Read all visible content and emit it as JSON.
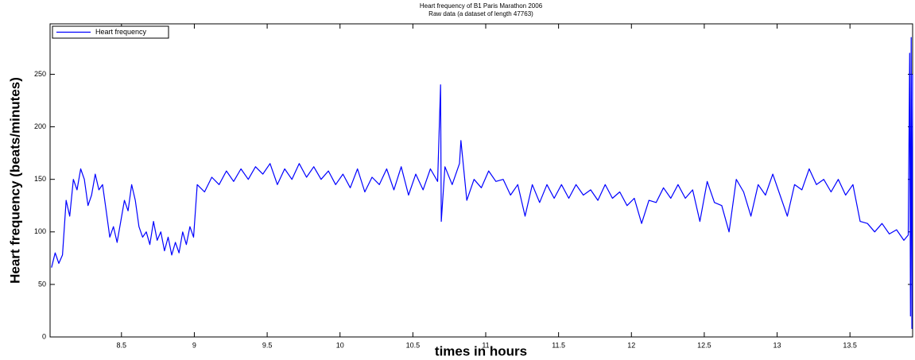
{
  "chart_data": {
    "type": "line",
    "title": "Heart frequency of B1 Paris Marathon 2006",
    "subtitle": "Raw data (a dataset of length 47763)",
    "xlabel": "times in hours",
    "ylabel": "Heart frequency (beats/minutes)",
    "xlim": [
      8.01,
      13.93
    ],
    "ylim": [
      0,
      298
    ],
    "xticks": [
      8.5,
      9,
      9.5,
      10,
      10.5,
      11,
      11.5,
      12,
      12.5,
      13,
      13.5
    ],
    "yticks": [
      0,
      50,
      100,
      150,
      200,
      250
    ],
    "grid": false,
    "legend": "upper left",
    "x": [
      8.02,
      8.045,
      8.07,
      8.095,
      8.12,
      8.145,
      8.17,
      8.195,
      8.22,
      8.245,
      8.27,
      8.295,
      8.32,
      8.345,
      8.37,
      8.395,
      8.42,
      8.445,
      8.47,
      8.495,
      8.52,
      8.545,
      8.57,
      8.595,
      8.62,
      8.645,
      8.67,
      8.695,
      8.72,
      8.745,
      8.77,
      8.795,
      8.82,
      8.845,
      8.87,
      8.895,
      8.92,
      8.945,
      8.97,
      8.995,
      9.02,
      9.07,
      9.12,
      9.17,
      9.22,
      9.27,
      9.32,
      9.37,
      9.42,
      9.47,
      9.52,
      9.57,
      9.62,
      9.67,
      9.72,
      9.77,
      9.82,
      9.87,
      9.92,
      9.97,
      10.02,
      10.07,
      10.12,
      10.17,
      10.22,
      10.27,
      10.32,
      10.37,
      10.42,
      10.47,
      10.52,
      10.57,
      10.62,
      10.67,
      10.69,
      10.695,
      10.72,
      10.77,
      10.82,
      10.83,
      10.87,
      10.92,
      10.97,
      11.02,
      11.07,
      11.12,
      11.17,
      11.22,
      11.27,
      11.32,
      11.37,
      11.42,
      11.47,
      11.52,
      11.57,
      11.62,
      11.67,
      11.72,
      11.77,
      11.82,
      11.87,
      11.92,
      11.97,
      12.02,
      12.07,
      12.12,
      12.17,
      12.22,
      12.27,
      12.32,
      12.37,
      12.42,
      12.47,
      12.52,
      12.57,
      12.62,
      12.67,
      12.72,
      12.77,
      12.82,
      12.87,
      12.92,
      12.97,
      13.02,
      13.07,
      13.12,
      13.17,
      13.22,
      13.27,
      13.32,
      13.37,
      13.42,
      13.47,
      13.52,
      13.57,
      13.62,
      13.67,
      13.72,
      13.77,
      13.82,
      13.87,
      13.9,
      13.91,
      13.915,
      13.92,
      13.925,
      13.93
    ],
    "series": [
      {
        "name": "Heart frequency",
        "color": "#0000ff",
        "values": [
          66,
          80,
          70,
          78,
          130,
          115,
          150,
          140,
          160,
          150,
          125,
          135,
          155,
          140,
          145,
          120,
          95,
          105,
          90,
          110,
          130,
          120,
          145,
          130,
          105,
          95,
          100,
          88,
          110,
          92,
          100,
          82,
          95,
          78,
          90,
          80,
          100,
          88,
          105,
          95,
          145,
          138,
          152,
          145,
          158,
          148,
          160,
          150,
          162,
          155,
          165,
          145,
          160,
          150,
          165,
          152,
          162,
          150,
          158,
          145,
          155,
          142,
          160,
          138,
          152,
          145,
          160,
          140,
          162,
          135,
          155,
          140,
          160,
          148,
          240,
          110,
          162,
          145,
          165,
          187,
          130,
          150,
          142,
          158,
          148,
          150,
          135,
          145,
          115,
          145,
          128,
          145,
          132,
          145,
          132,
          145,
          135,
          140,
          130,
          145,
          132,
          138,
          125,
          132,
          108,
          130,
          128,
          142,
          132,
          145,
          132,
          140,
          110,
          148,
          128,
          125,
          100,
          150,
          138,
          115,
          145,
          135,
          155,
          135,
          115,
          145,
          140,
          160,
          145,
          150,
          138,
          150,
          135,
          145,
          110,
          108,
          100,
          108,
          98,
          102,
          92,
          97,
          270,
          20,
          285,
          8,
          250
        ]
      }
    ]
  }
}
